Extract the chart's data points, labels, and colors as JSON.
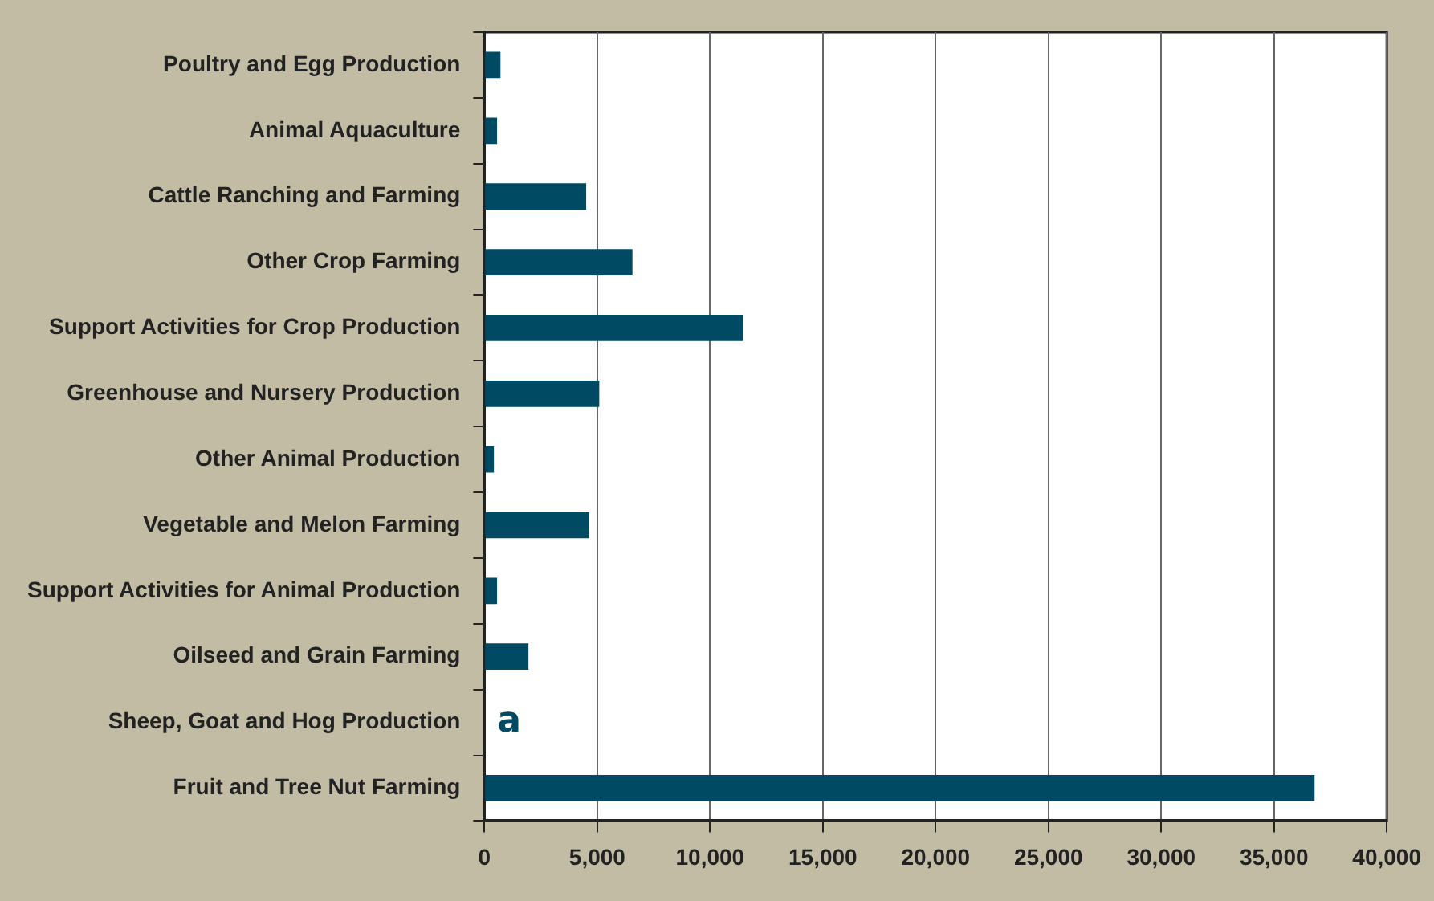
{
  "chart_data": {
    "type": "bar",
    "orientation": "horizontal",
    "categories": [
      "Poultry and Egg Production",
      "Animal Aquaculture",
      "Cattle Ranching and Farming",
      "Other Crop Farming",
      "Support Activities for Crop Production",
      "Greenhouse and Nursery Production",
      "Other Animal Production",
      "Vegetable and Melon Farming",
      "Support Activities for Animal Production",
      "Oilseed and Grain Farming",
      "Sheep, Goat and Hog Production",
      "Fruit and Tree Nut Farming"
    ],
    "values": [
      710,
      560,
      4510,
      6560,
      11460,
      5090,
      420,
      4650,
      560,
      1950,
      null,
      36800
    ],
    "color": "#004a63",
    "xlim": [
      0,
      40000
    ],
    "xticks": [
      {
        "value": 0,
        "label": "0"
      },
      {
        "value": 5000,
        "label": "5,000"
      },
      {
        "value": 10000,
        "label": "10,000"
      },
      {
        "value": 15000,
        "label": "15,000"
      },
      {
        "value": 20000,
        "label": "20,000"
      },
      {
        "value": 25000,
        "label": "25,000"
      },
      {
        "value": 30000,
        "label": "30,000"
      },
      {
        "value": 35000,
        "label": "35,000"
      },
      {
        "value": 40000,
        "label": "40,000"
      }
    ],
    "grid": "x",
    "legend": false,
    "value_labels": [
      null,
      null,
      null,
      null,
      null,
      null,
      null,
      null,
      null,
      null,
      "a",
      null
    ]
  }
}
